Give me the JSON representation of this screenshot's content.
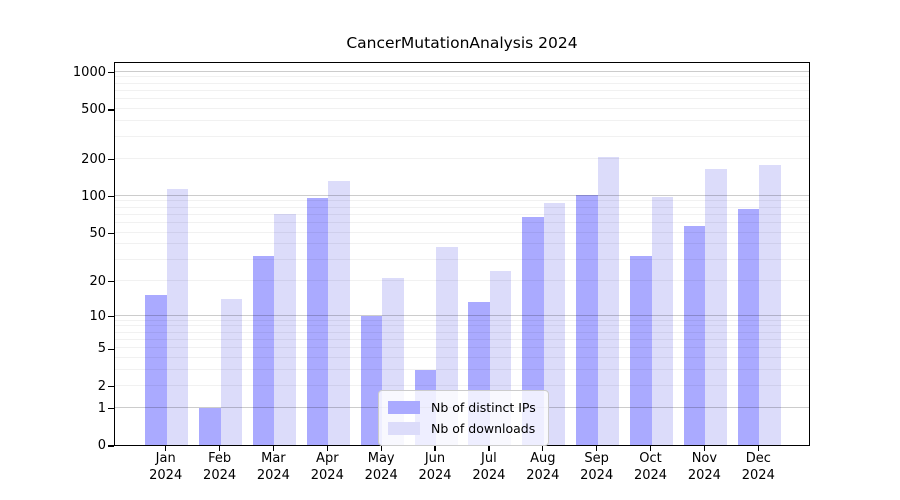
{
  "title": "CancerMutationAnalysis 2024",
  "chart_data": {
    "type": "bar",
    "title": "CancerMutationAnalysis 2024",
    "x_tick_months": [
      "Jan",
      "Feb",
      "Mar",
      "Apr",
      "May",
      "Jun",
      "Jul",
      "Aug",
      "Sep",
      "Oct",
      "Nov",
      "Dec"
    ],
    "x_tick_year": "2024",
    "categories": [
      "Jan 2024",
      "Feb 2024",
      "Mar 2024",
      "Apr 2024",
      "May 2024",
      "Jun 2024",
      "Jul 2024",
      "Aug 2024",
      "Sep 2024",
      "Oct 2024",
      "Nov 2024",
      "Dec 2024"
    ],
    "series": [
      {
        "name": "Nb of distinct IPs",
        "color": "#aaaaff",
        "values": [
          15,
          1,
          32,
          96,
          10,
          3,
          13,
          67,
          101,
          32,
          57,
          78
        ]
      },
      {
        "name": "Nb of downloads",
        "color": "#dcdcfa",
        "values": [
          114,
          14,
          71,
          131,
          21,
          38,
          24,
          88,
          205,
          98,
          166,
          178
        ]
      }
    ],
    "y_axis": {
      "scale": "log1p",
      "tick_values": [
        0,
        1,
        2,
        5,
        10,
        20,
        50,
        100,
        200,
        500,
        1000
      ],
      "tick_labels": [
        "0",
        "1",
        "2",
        "5",
        "10",
        "20",
        "50",
        "100",
        "200",
        "500",
        "1000"
      ],
      "major_gridline_values": [
        1,
        10,
        100,
        1000
      ],
      "range_max": 1230
    },
    "grid": true,
    "legend_position": "lower-center-inside",
    "colors": {
      "ips_bar": "#aaaaff",
      "downloads_bar": "#dcdcfa",
      "axis_frame": "#000000",
      "grid_major": "#cccccc",
      "grid_minor": "#f0f0f0",
      "legend_border": "#cccccc",
      "text": "#000000"
    }
  }
}
